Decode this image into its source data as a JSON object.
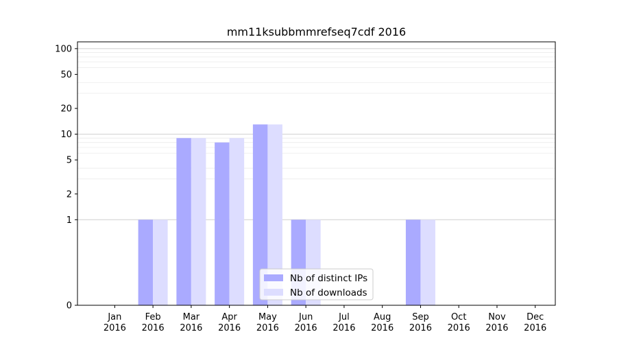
{
  "chart_data": {
    "type": "bar",
    "title": "mm11ksubbmmrefseq7cdf 2016",
    "xlabel": "",
    "ylabel": "",
    "yscale": "symlog",
    "ylim": [
      0,
      120
    ],
    "yticks": [
      0,
      1,
      2,
      5,
      10,
      20,
      50,
      100
    ],
    "categories": [
      {
        "month": "Jan",
        "year": "2016"
      },
      {
        "month": "Feb",
        "year": "2016"
      },
      {
        "month": "Mar",
        "year": "2016"
      },
      {
        "month": "Apr",
        "year": "2016"
      },
      {
        "month": "May",
        "year": "2016"
      },
      {
        "month": "Jun",
        "year": "2016"
      },
      {
        "month": "Jul",
        "year": "2016"
      },
      {
        "month": "Aug",
        "year": "2016"
      },
      {
        "month": "Sep",
        "year": "2016"
      },
      {
        "month": "Oct",
        "year": "2016"
      },
      {
        "month": "Nov",
        "year": "2016"
      },
      {
        "month": "Dec",
        "year": "2016"
      }
    ],
    "series": [
      {
        "name": "Nb of distinct IPs",
        "color": "#aaaaff",
        "values": [
          0,
          1,
          9,
          8,
          13,
          1,
          0,
          0,
          1,
          0,
          0,
          0
        ]
      },
      {
        "name": "Nb of downloads",
        "color": "#ddddff",
        "values": [
          0,
          1,
          9,
          9,
          13,
          1,
          0,
          0,
          1,
          0,
          0,
          0
        ]
      }
    ],
    "grid": {
      "major": true,
      "minor": true
    },
    "legend": "lower-center"
  }
}
